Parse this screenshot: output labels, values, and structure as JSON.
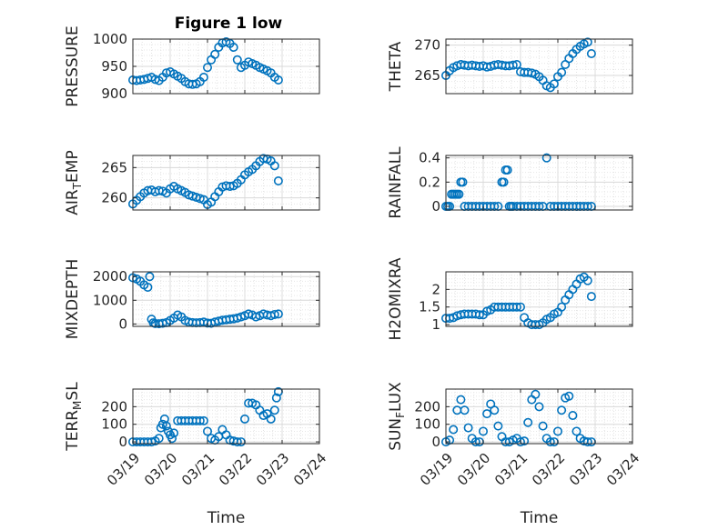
{
  "figure": {
    "title": "Figure 1 low",
    "marker_color": "#0072BD",
    "x_labels": [
      "03/19",
      "03/20",
      "03/21",
      "03/22",
      "03/23",
      "03/24"
    ]
  },
  "chart_data": [
    {
      "type": "scatter",
      "ylabel": "PRESSURE",
      "ylabel_sub": "",
      "ylabel_after": "",
      "xlim": [
        0,
        5
      ],
      "ylim": [
        900,
        1000
      ],
      "yticks": [
        900,
        950,
        1000
      ],
      "grid": true,
      "x": [
        0,
        0.1,
        0.2,
        0.3,
        0.4,
        0.5,
        0.6,
        0.7,
        0.8,
        0.9,
        1.0,
        1.1,
        1.2,
        1.3,
        1.4,
        1.5,
        1.6,
        1.7,
        1.8,
        1.9,
        2.0,
        2.1,
        2.2,
        2.3,
        2.4,
        2.5,
        2.6,
        2.7,
        2.8,
        2.9,
        3.0,
        3.1,
        3.2,
        3.3,
        3.4,
        3.5,
        3.6,
        3.7,
        3.8,
        3.9
      ],
      "y": [
        925,
        924,
        925,
        926,
        928,
        930,
        926,
        924,
        930,
        938,
        940,
        936,
        932,
        928,
        922,
        918,
        917,
        918,
        922,
        930,
        948,
        962,
        972,
        985,
        993,
        995,
        992,
        985,
        962,
        948,
        952,
        958,
        955,
        952,
        948,
        945,
        942,
        938,
        930,
        925
      ]
    },
    {
      "type": "scatter",
      "ylabel": "THETA",
      "ylabel_sub": "",
      "ylabel_after": "",
      "xlim": [
        0,
        5
      ],
      "ylim": [
        262,
        271
      ],
      "yticks": [
        265,
        270
      ],
      "grid": true,
      "x": [
        0,
        0.1,
        0.2,
        0.3,
        0.4,
        0.5,
        0.6,
        0.7,
        0.8,
        0.9,
        1.0,
        1.1,
        1.2,
        1.3,
        1.4,
        1.5,
        1.6,
        1.7,
        1.8,
        1.9,
        2.0,
        2.1,
        2.2,
        2.3,
        2.4,
        2.5,
        2.6,
        2.7,
        2.8,
        2.9,
        3.0,
        3.1,
        3.2,
        3.3,
        3.4,
        3.5,
        3.6,
        3.7,
        3.8,
        3.9
      ],
      "y": [
        265,
        265.8,
        266.3,
        266.6,
        266.8,
        266.7,
        266.6,
        266.7,
        266.6,
        266.5,
        266.6,
        266.4,
        266.5,
        266.7,
        266.8,
        266.7,
        266.6,
        266.6,
        266.7,
        266.8,
        265.6,
        265.5,
        265.5,
        265.4,
        265.2,
        264.8,
        264.2,
        263.3,
        263.0,
        263.6,
        264.8,
        265.5,
        266.8,
        267.8,
        268.6,
        269.3,
        269.8,
        270.2,
        270.5,
        268.6
      ]
    },
    {
      "type": "scatter",
      "ylabel": "AIR",
      "ylabel_sub": "T",
      "ylabel_after": "EMP",
      "xlim": [
        0,
        5
      ],
      "ylim": [
        258,
        267
      ],
      "yticks": [
        260,
        265
      ],
      "grid": true,
      "x": [
        0,
        0.1,
        0.2,
        0.3,
        0.4,
        0.5,
        0.6,
        0.7,
        0.8,
        0.9,
        1.0,
        1.1,
        1.2,
        1.3,
        1.4,
        1.5,
        1.6,
        1.7,
        1.8,
        1.9,
        2.0,
        2.1,
        2.2,
        2.3,
        2.4,
        2.5,
        2.6,
        2.7,
        2.8,
        2.9,
        3.0,
        3.1,
        3.2,
        3.3,
        3.4,
        3.5,
        3.6,
        3.7,
        3.8,
        3.9
      ],
      "y": [
        259,
        259.6,
        260.2,
        260.8,
        261.2,
        261.3,
        261.0,
        261.2,
        261.1,
        260.8,
        261.5,
        261.9,
        261.5,
        261.2,
        260.9,
        260.5,
        260.3,
        260.1,
        259.9,
        259.7,
        258.9,
        259.3,
        260.2,
        261.0,
        261.8,
        262.0,
        261.9,
        262.0,
        262.4,
        263.0,
        263.8,
        264.3,
        264.7,
        265.3,
        266.0,
        266.5,
        266.4,
        266.1,
        265.3,
        262.8
      ]
    },
    {
      "type": "scatter",
      "ylabel": "RAINFALL",
      "ylabel_sub": "",
      "ylabel_after": "",
      "xlim": [
        0,
        5
      ],
      "ylim": [
        -0.03,
        0.42
      ],
      "yticks": [
        0,
        0.2,
        0.4
      ],
      "grid": true,
      "x": [
        0,
        0.05,
        0.1,
        0.15,
        0.2,
        0.25,
        0.3,
        0.35,
        0.4,
        0.45,
        0.5,
        0.6,
        0.7,
        0.8,
        0.9,
        1.0,
        1.1,
        1.2,
        1.3,
        1.4,
        1.5,
        1.55,
        1.6,
        1.65,
        1.7,
        1.75,
        1.8,
        1.9,
        2.0,
        2.1,
        2.2,
        2.3,
        2.4,
        2.5,
        2.6,
        2.7,
        2.8,
        2.9,
        3.0,
        3.1,
        3.2,
        3.3,
        3.4,
        3.5,
        3.6,
        3.7,
        3.8,
        3.9
      ],
      "y": [
        0,
        0,
        0,
        0.1,
        0.1,
        0.1,
        0.1,
        0.1,
        0.2,
        0.2,
        0,
        0,
        0,
        0,
        0,
        0,
        0,
        0,
        0,
        0,
        0.2,
        0.2,
        0.3,
        0.3,
        0,
        0,
        0,
        0,
        0,
        0,
        0,
        0,
        0,
        0,
        0,
        0.4,
        0,
        0,
        0,
        0,
        0,
        0,
        0,
        0,
        0,
        0,
        0,
        0
      ]
    },
    {
      "type": "scatter",
      "ylabel": "MIXDEPTH",
      "ylabel_sub": "",
      "ylabel_after": "",
      "xlim": [
        0,
        5
      ],
      "ylim": [
        -100,
        2200
      ],
      "yticks": [
        0,
        1000,
        2000
      ],
      "grid": true,
      "x": [
        0,
        0.1,
        0.2,
        0.3,
        0.4,
        0.45,
        0.5,
        0.55,
        0.6,
        0.7,
        0.8,
        0.9,
        1.0,
        1.1,
        1.2,
        1.3,
        1.4,
        1.5,
        1.6,
        1.7,
        1.8,
        1.9,
        2.0,
        2.1,
        2.2,
        2.3,
        2.4,
        2.5,
        2.6,
        2.7,
        2.8,
        2.9,
        3.0,
        3.1,
        3.2,
        3.3,
        3.4,
        3.5,
        3.6,
        3.7,
        3.8,
        3.9
      ],
      "y": [
        1950,
        1900,
        1800,
        1650,
        1550,
        2000,
        200,
        50,
        20,
        10,
        30,
        60,
        150,
        250,
        380,
        300,
        150,
        80,
        60,
        50,
        60,
        80,
        40,
        30,
        80,
        120,
        160,
        180,
        200,
        220,
        250,
        300,
        350,
        420,
        380,
        300,
        350,
        420,
        380,
        350,
        400,
        420
      ]
    },
    {
      "type": "scatter",
      "ylabel": "H2OMIXRA",
      "ylabel_sub": "",
      "ylabel_after": "",
      "xlim": [
        0,
        5
      ],
      "ylim": [
        0.95,
        2.5
      ],
      "yticks": [
        1,
        1.5,
        2
      ],
      "grid": true,
      "x": [
        0,
        0.1,
        0.2,
        0.3,
        0.4,
        0.5,
        0.6,
        0.7,
        0.8,
        0.9,
        1.0,
        1.1,
        1.2,
        1.3,
        1.4,
        1.5,
        1.6,
        1.7,
        1.8,
        1.9,
        2.0,
        2.1,
        2.2,
        2.3,
        2.4,
        2.5,
        2.6,
        2.7,
        2.8,
        2.9,
        3.0,
        3.1,
        3.2,
        3.3,
        3.4,
        3.5,
        3.6,
        3.7,
        3.8,
        3.9
      ],
      "y": [
        1.18,
        1.18,
        1.2,
        1.25,
        1.28,
        1.3,
        1.3,
        1.3,
        1.3,
        1.28,
        1.28,
        1.38,
        1.42,
        1.5,
        1.5,
        1.5,
        1.5,
        1.5,
        1.5,
        1.5,
        1.5,
        1.2,
        1.05,
        1.0,
        1.0,
        1.0,
        1.05,
        1.15,
        1.2,
        1.3,
        1.35,
        1.5,
        1.7,
        1.85,
        2.0,
        2.15,
        2.3,
        2.35,
        2.25,
        1.8
      ]
    },
    {
      "type": "scatter",
      "ylabel": "TERR",
      "ylabel_sub": "M",
      "ylabel_after": "SL",
      "xlim": [
        0,
        5
      ],
      "ylim": [
        -10,
        300
      ],
      "yticks": [
        0,
        100,
        200
      ],
      "grid": true,
      "x": [
        0,
        0.1,
        0.2,
        0.3,
        0.4,
        0.5,
        0.6,
        0.7,
        0.75,
        0.8,
        0.85,
        0.9,
        0.95,
        1.0,
        1.05,
        1.1,
        1.2,
        1.3,
        1.4,
        1.5,
        1.6,
        1.7,
        1.8,
        1.9,
        2.0,
        2.1,
        2.2,
        2.3,
        2.4,
        2.5,
        2.6,
        2.7,
        2.8,
        2.9,
        3.0,
        3.1,
        3.2,
        3.3,
        3.4,
        3.5,
        3.6,
        3.7,
        3.8,
        3.85,
        3.9
      ],
      "y": [
        0,
        0,
        0,
        0,
        0,
        0,
        5,
        20,
        80,
        100,
        130,
        90,
        60,
        40,
        20,
        50,
        120,
        120,
        120,
        120,
        120,
        120,
        120,
        120,
        60,
        20,
        10,
        30,
        70,
        40,
        10,
        5,
        0,
        0,
        130,
        220,
        220,
        210,
        180,
        150,
        160,
        130,
        180,
        250,
        285
      ]
    },
    {
      "type": "scatter",
      "ylabel": "SUN",
      "ylabel_sub": "F",
      "ylabel_after": "LUX",
      "xlim": [
        0,
        5
      ],
      "ylim": [
        -10,
        300
      ],
      "yticks": [
        0,
        100,
        200
      ],
      "grid": true,
      "x": [
        0,
        0.1,
        0.2,
        0.3,
        0.4,
        0.5,
        0.6,
        0.7,
        0.8,
        0.9,
        1.0,
        1.1,
        1.2,
        1.3,
        1.4,
        1.5,
        1.6,
        1.7,
        1.8,
        1.9,
        2.0,
        2.1,
        2.2,
        2.3,
        2.4,
        2.5,
        2.6,
        2.7,
        2.8,
        2.9,
        3.0,
        3.1,
        3.2,
        3.3,
        3.4,
        3.5,
        3.6,
        3.7,
        3.8,
        3.9
      ],
      "y": [
        0,
        10,
        70,
        180,
        240,
        180,
        80,
        20,
        0,
        0,
        60,
        160,
        215,
        180,
        90,
        30,
        0,
        0,
        10,
        20,
        0,
        5,
        110,
        240,
        270,
        200,
        90,
        20,
        0,
        0,
        60,
        180,
        250,
        260,
        150,
        60,
        20,
        5,
        0,
        0
      ]
    }
  ]
}
